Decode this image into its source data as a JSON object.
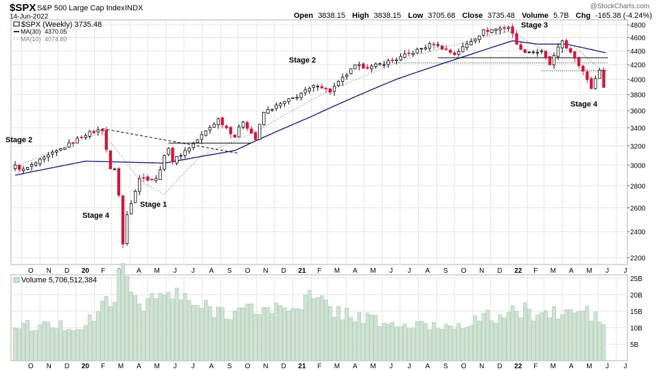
{
  "header": {
    "symbol": "$SPX",
    "name": "S&P 500 Large Cap Index",
    "exchange": "INDX",
    "date": "14-Jun-2022",
    "open_label": "Open",
    "open": "3838.15",
    "high_label": "High",
    "high": "3838.15",
    "low_label": "Low",
    "low": "3705.68",
    "close_label": "Close",
    "close": "3735.48",
    "volume_label": "Volume",
    "volume": "5.7B",
    "chg_label": "Chg",
    "chg": "-165.38 (-4.24%)",
    "watermark": "@StockCharts.com"
  },
  "legend": {
    "price": "$SPX (Weekly) 3735.48",
    "ma30_label": "MA(30)",
    "ma30_value": "4370.05",
    "ma10_label": "MA(10)",
    "ma10_value": "4074.80",
    "volume": "Volume 5,706,512,384"
  },
  "colors": {
    "up": "#000000",
    "down": "#d1173f",
    "ma30": "#1b1f77",
    "ma10": "#a0a0a0",
    "volume_bar": "#cfe3d3",
    "volume_edge": "#9fbba6",
    "grid": "#e3e3e3",
    "text": "#000000",
    "legend_ma10_text": "#808080"
  },
  "chart_data": [
    {
      "type": "candlestick",
      "title": "$SPX (Weekly)",
      "x_ticks": [
        "O",
        "N",
        "D",
        "20",
        "F",
        "M",
        "A",
        "M",
        "J",
        "J",
        "A",
        "S",
        "O",
        "N",
        "D",
        "21",
        "F",
        "M",
        "A",
        "M",
        "J",
        "J",
        "A",
        "S",
        "O",
        "N",
        "D",
        "22",
        "F",
        "M",
        "A",
        "M",
        "J",
        "J"
      ],
      "y_ticks": [
        2200,
        2400,
        2600,
        2800,
        3000,
        3200,
        3400,
        3600,
        3800,
        4000,
        4200,
        4400,
        4600,
        4800
      ],
      "y_scale": "log",
      "ylim": [
        2150,
        4880
      ],
      "annotations": [
        "Stage 2",
        "Stage 4",
        "Stage 1",
        "Stage 2",
        "Stage 3",
        "Stage 4"
      ],
      "anchor_points": [
        {
          "date": "2019-09-20",
          "close": 2990
        },
        {
          "date": "2019-10-04",
          "close": 2950
        },
        {
          "date": "2019-10-25",
          "close": 3020
        },
        {
          "date": "2019-11-29",
          "close": 3140
        },
        {
          "date": "2019-12-27",
          "close": 3240
        },
        {
          "date": "2020-01-17",
          "close": 3330
        },
        {
          "date": "2020-02-14",
          "close": 3380
        },
        {
          "date": "2020-02-28",
          "close": 2950
        },
        {
          "date": "2020-03-06",
          "close": 2970
        },
        {
          "date": "2020-03-13",
          "close": 2710
        },
        {
          "date": "2020-03-20",
          "close": 2300
        },
        {
          "date": "2020-03-27",
          "close": 2540
        },
        {
          "date": "2020-04-17",
          "close": 2875
        },
        {
          "date": "2020-05-15",
          "close": 2860
        },
        {
          "date": "2020-06-05",
          "close": 3190
        },
        {
          "date": "2020-06-12",
          "close": 3040
        },
        {
          "date": "2020-07-17",
          "close": 3220
        },
        {
          "date": "2020-08-28",
          "close": 3500
        },
        {
          "date": "2020-09-25",
          "close": 3300
        },
        {
          "date": "2020-10-09",
          "close": 3480
        },
        {
          "date": "2020-10-30",
          "close": 3270
        },
        {
          "date": "2020-11-13",
          "close": 3580
        },
        {
          "date": "2020-12-31",
          "close": 3750
        },
        {
          "date": "2021-02-12",
          "close": 3930
        },
        {
          "date": "2021-03-05",
          "close": 3840
        },
        {
          "date": "2021-04-16",
          "close": 4180
        },
        {
          "date": "2021-05-14",
          "close": 4170
        },
        {
          "date": "2021-06-25",
          "close": 4280
        },
        {
          "date": "2021-08-27",
          "close": 4510
        },
        {
          "date": "2021-10-01",
          "close": 4350
        },
        {
          "date": "2021-11-19",
          "close": 4700
        },
        {
          "date": "2021-12-31",
          "close": 4770
        },
        {
          "date": "2022-01-21",
          "close": 4400
        },
        {
          "date": "2022-02-25",
          "close": 4380
        },
        {
          "date": "2022-03-11",
          "close": 4200
        },
        {
          "date": "2022-04-01",
          "close": 4550
        },
        {
          "date": "2022-04-22",
          "close": 4270
        },
        {
          "date": "2022-05-06",
          "close": 4120
        },
        {
          "date": "2022-05-20",
          "close": 3900
        },
        {
          "date": "2022-06-03",
          "close": 4110
        },
        {
          "date": "2022-06-10",
          "close": 3900
        },
        {
          "date": "2022-06-14",
          "close": 3735
        }
      ],
      "ma30_anchor_points": [
        {
          "date": "2019-09-20",
          "value": 2900
        },
        {
          "date": "2020-01-17",
          "value": 3040
        },
        {
          "date": "2020-05-29",
          "value": 3020
        },
        {
          "date": "2020-09-25",
          "value": 3150
        },
        {
          "date": "2021-01-29",
          "value": 3520
        },
        {
          "date": "2021-06-25",
          "value": 4000
        },
        {
          "date": "2021-10-29",
          "value": 4350
        },
        {
          "date": "2022-01-07",
          "value": 4550
        },
        {
          "date": "2022-02-18",
          "value": 4500
        },
        {
          "date": "2022-04-08",
          "value": 4500
        },
        {
          "date": "2022-06-14",
          "value": 4370
        }
      ],
      "ma10_anchor_points": [
        {
          "date": "2019-09-20",
          "value": 2980
        },
        {
          "date": "2020-02-14",
          "value": 3350
        },
        {
          "date": "2020-04-17",
          "value": 2850
        },
        {
          "date": "2020-05-29",
          "value": 2720
        },
        {
          "date": "2020-07-31",
          "value": 3100
        },
        {
          "date": "2020-10-30",
          "value": 3350
        },
        {
          "date": "2021-02-26",
          "value": 3830
        },
        {
          "date": "2021-07-30",
          "value": 4340
        },
        {
          "date": "2021-12-31",
          "value": 4700
        },
        {
          "date": "2022-03-18",
          "value": 4330
        },
        {
          "date": "2022-04-22",
          "value": 4450
        },
        {
          "date": "2022-06-14",
          "value": 4075
        }
      ],
      "trendlines": [
        {
          "style": "dashed",
          "from": {
            "date": "2020-02-14",
            "value": 3390
          },
          "to": {
            "date": "2020-10-02",
            "value": 3120
          }
        },
        {
          "style": "solid",
          "from": {
            "date": "2020-06-05",
            "value": 3230
          },
          "to": {
            "date": "2020-10-23",
            "value": 3230
          }
        },
        {
          "style": "solid",
          "from": {
            "date": "2021-09-03",
            "value": 4300
          },
          "to": {
            "date": "2022-06-17",
            "value": 4300
          }
        },
        {
          "style": "dotted",
          "from": {
            "date": "2021-06-04",
            "value": 4225
          },
          "to": {
            "date": "2022-06-17",
            "value": 4225
          }
        },
        {
          "style": "dotted",
          "from": {
            "date": "2022-02-25",
            "value": 4115
          },
          "to": {
            "date": "2022-06-17",
            "value": 4115
          }
        }
      ]
    },
    {
      "type": "bar",
      "title": "Volume",
      "y_ticks": [
        "5B",
        "10B",
        "15B",
        "20B",
        "25B"
      ],
      "ylim": [
        0,
        26
      ],
      "volume_anchor_points_billions": [
        {
          "date": "2019-09-20",
          "value": 10.5
        },
        {
          "date": "2020-01-17",
          "value": 10.5
        },
        {
          "date": "2020-02-28",
          "value": 19
        },
        {
          "date": "2020-03-13",
          "value": 24
        },
        {
          "date": "2020-03-20",
          "value": 26
        },
        {
          "date": "2020-04-17",
          "value": 18
        },
        {
          "date": "2020-06-12",
          "value": 20
        },
        {
          "date": "2020-07-31",
          "value": 16
        },
        {
          "date": "2020-09-25",
          "value": 15
        },
        {
          "date": "2020-12-18",
          "value": 16
        },
        {
          "date": "2021-01-29",
          "value": 19
        },
        {
          "date": "2021-03-19",
          "value": 15
        },
        {
          "date": "2021-06-25",
          "value": 10.5
        },
        {
          "date": "2021-09-17",
          "value": 10.5
        },
        {
          "date": "2021-11-26",
          "value": 13
        },
        {
          "date": "2022-01-28",
          "value": 15
        },
        {
          "date": "2022-03-11",
          "value": 14
        },
        {
          "date": "2022-05-13",
          "value": 15
        },
        {
          "date": "2022-06-10",
          "value": 11
        },
        {
          "date": "2022-06-14",
          "value": 5.7
        }
      ]
    }
  ]
}
